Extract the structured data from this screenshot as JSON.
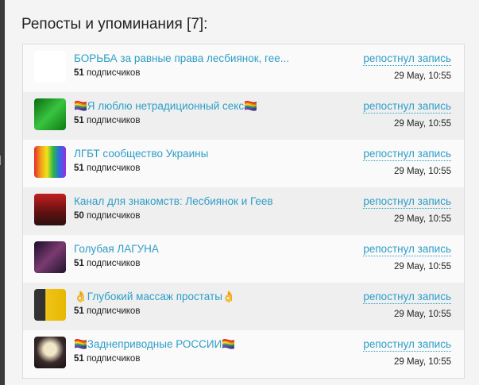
{
  "title": "Репосты и упоминания [7]:",
  "items": [
    {
      "name": "БОРЬБА за равные права лесбиянок, гее...",
      "count": "51",
      "subs_label": "подписчиков",
      "action": "репостнул запись",
      "date": "29 May, 10:55",
      "avatar": "linear-gradient(#fff,#fff)"
    },
    {
      "name": "🏳️‍🌈Я люблю нетрадиционный секс🏳️‍🌈",
      "count": "51",
      "subs_label": "подписчиков",
      "action": "репостнул запись",
      "date": "29 May, 10:55",
      "avatar": "linear-gradient(135deg,#0a6b12,#39c43f 50%,#0d7a14)"
    },
    {
      "name": "ЛГБТ сообщество Украины",
      "count": "51",
      "subs_label": "подписчиков",
      "action": "репостнул запись",
      "date": "29 May, 10:55",
      "avatar": "linear-gradient(90deg,#e52b2b,#f39a1a,#f3e31a,#2bb64a,#2b6be5,#9a2be5)"
    },
    {
      "name": "Канал для знакомств: Лесбиянок и Геев",
      "count": "50",
      "subs_label": "подписчиков",
      "action": "репостнул запись",
      "date": "29 May, 10:55",
      "avatar": "linear-gradient(180deg,#c02020,#601010 60%,#2a1010)"
    },
    {
      "name": "Голубая ЛАГУНА",
      "count": "51",
      "subs_label": "подписчиков",
      "action": "репостнул запись",
      "date": "29 May, 10:55",
      "avatar": "linear-gradient(135deg,#1a0f2a,#7a3a70 50%,#20152d)"
    },
    {
      "name": "👌Глубокий массаж простаты👌",
      "count": "51",
      "subs_label": "подписчиков",
      "action": "репостнул запись",
      "date": "29 May, 10:55",
      "avatar": "linear-gradient(90deg,#333 35%,#f0c419 36%,#e6b800)"
    },
    {
      "name": "🏳️‍🌈Заднеприводные РОССИИ🏳️‍🌈",
      "count": "51",
      "subs_label": "подписчиков",
      "action": "репостнул запись",
      "date": "29 May, 10:55",
      "avatar": "radial-gradient(circle at 50% 40%,#f0e6c8 25%,#3a2a2a 55%,#111)"
    }
  ]
}
